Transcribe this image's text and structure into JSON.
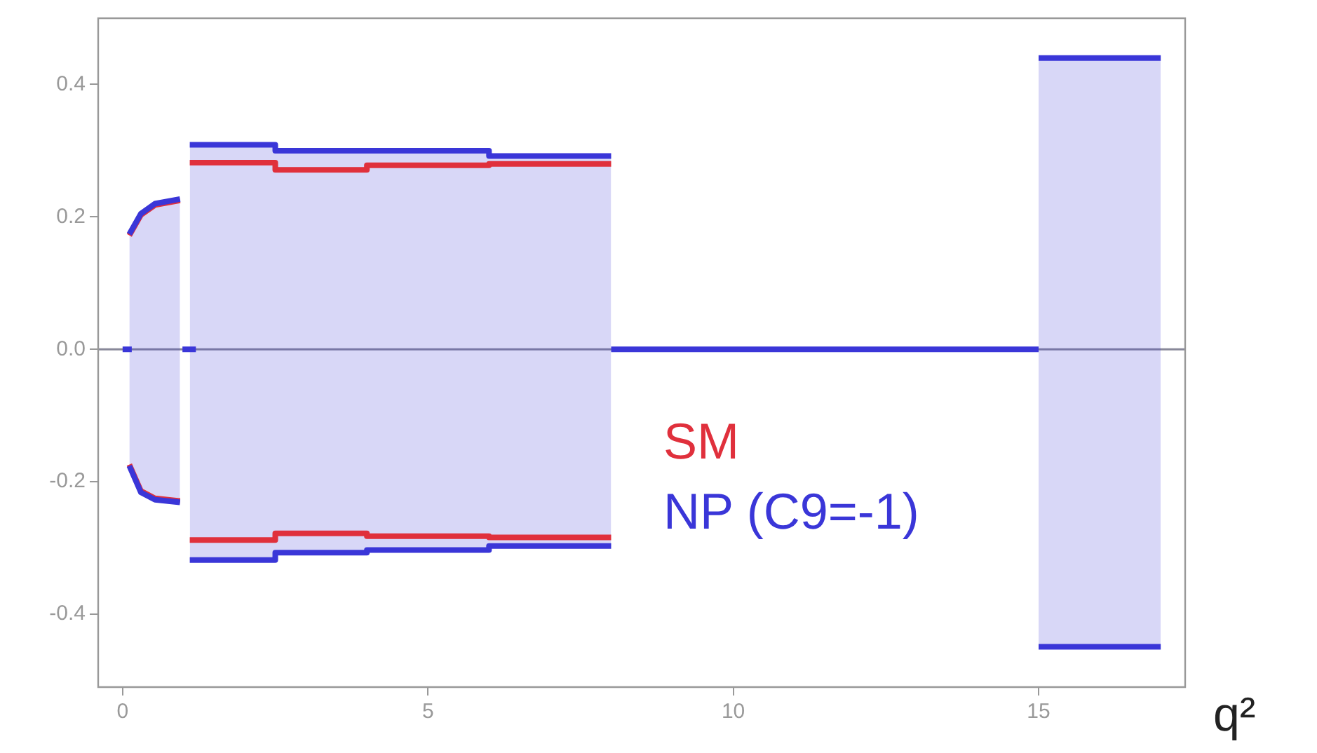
{
  "chart_data": {
    "type": "line",
    "xlabel": "q²",
    "xlim": [
      -0.4,
      17.4
    ],
    "ylim": [
      -0.51,
      0.5
    ],
    "xticks": [
      0,
      5,
      10,
      15
    ],
    "yticks": [
      -0.4,
      -0.2,
      {
        "value": 0,
        "label": "0.0"
      },
      0.2,
      0.4
    ],
    "grid": false,
    "legend": "bottom",
    "marker": "none",
    "line_style": "solid",
    "ref_lines": [
      {
        "axis": "y",
        "value": 0,
        "color": "#888899"
      }
    ],
    "series": [
      {
        "name": "SM",
        "color": "#e0303c",
        "x": [
          0.11,
          0.3,
          0.53,
          0.94,
          1.02,
          1.1,
          2.5,
          2.5,
          4,
          4,
          6,
          6,
          8
        ],
        "values": [
          0.172,
          0.203,
          0.218,
          0.225,
          null,
          0.282,
          0.282,
          0.271,
          0.271,
          0.278,
          0.278,
          0.28,
          0.28
        ]
      },
      {
        "color": "#e0303c",
        "x": [
          0.11,
          0.3,
          0.53,
          0.94,
          1.02,
          1.1,
          2.5,
          2.5,
          4,
          4,
          6,
          6,
          8
        ],
        "values": [
          -0.174,
          -0.214,
          -0.225,
          -0.229,
          null,
          -0.288,
          -0.288,
          -0.278,
          -0.278,
          -0.282,
          -0.282,
          -0.284,
          -0.284
        ]
      },
      {
        "name": "NP (C9=-1)",
        "color": "#3a36d8",
        "x": [
          0.11,
          0.3,
          0.53,
          0.94,
          1.02,
          1.1,
          2.5,
          2.5,
          4,
          4,
          6,
          6,
          8,
          11,
          15,
          17
        ],
        "values": [
          0.174,
          0.205,
          0.22,
          0.227,
          null,
          0.309,
          0.309,
          0.3,
          0.3,
          0.3,
          0.3,
          0.292,
          0.292,
          null,
          0.44,
          0.44
        ],
        "upper": [
          0.174,
          0.205,
          0.22,
          0.227,
          null,
          0.309,
          0.309,
          0.3,
          0.3,
          0.3,
          0.3,
          0.292,
          0.292,
          null,
          0.44,
          0.44
        ],
        "lower": [
          -0.176,
          -0.216,
          -0.227,
          -0.231,
          null,
          -0.318,
          -0.318,
          -0.307,
          -0.307,
          -0.303,
          -0.303,
          -0.297,
          -0.297,
          null,
          -0.449,
          -0.449
        ]
      },
      {
        "color": "#3a36d8",
        "x": [
          0.11,
          0.3,
          0.53,
          0.94,
          1.02,
          1.1,
          2.5,
          2.5,
          4,
          4,
          6,
          6,
          8,
          11,
          15,
          17
        ],
        "values": [
          -0.176,
          -0.216,
          -0.227,
          -0.231,
          null,
          -0.318,
          -0.318,
          -0.307,
          -0.307,
          -0.303,
          -0.303,
          -0.297,
          -0.297,
          null,
          -0.449,
          -0.449
        ]
      },
      {
        "color": "#3a36d8",
        "x": [
          0,
          0.15,
          0.5,
          0.98,
          1.2,
          5,
          8,
          15
        ],
        "values": [
          0,
          0,
          null,
          0,
          0,
          null,
          0,
          0
        ]
      }
    ]
  }
}
